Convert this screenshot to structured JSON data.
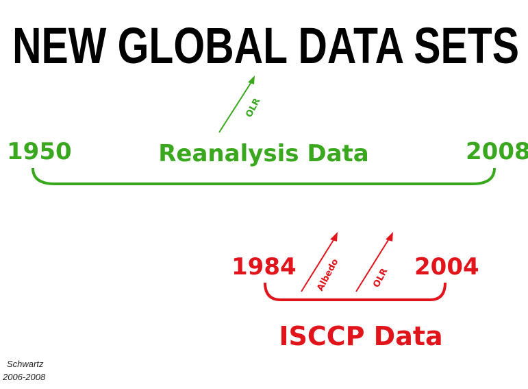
{
  "title": "NEW GLOBAL DATA SETS",
  "reanalysis": {
    "label": "Reanalysis Data",
    "start": "1950",
    "end": "2008",
    "arrows": [
      "OLR"
    ]
  },
  "isccp": {
    "label": "ISCCP Data",
    "start": "1984",
    "end": "2004",
    "arrows": [
      "Albedo",
      "OLR"
    ]
  },
  "credit": {
    "name": "Schwartz",
    "years": "2006-2008"
  }
}
